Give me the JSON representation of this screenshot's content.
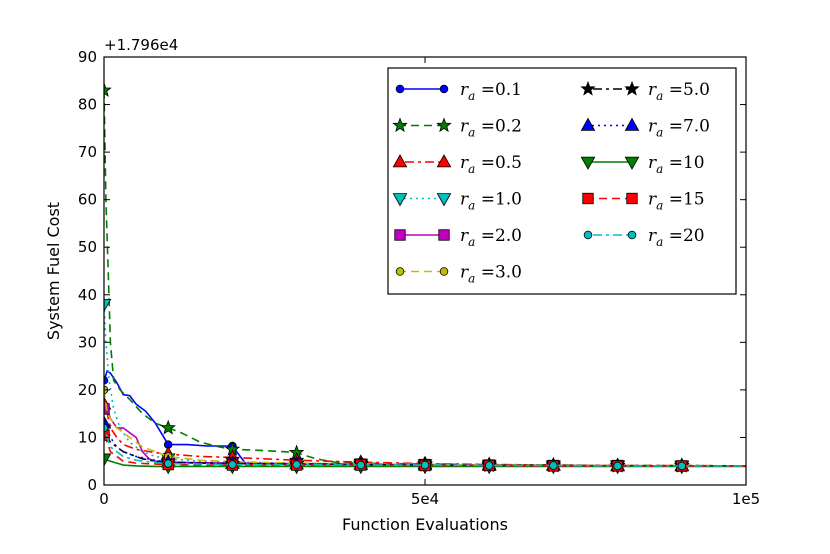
{
  "chart_data": {
    "type": "line",
    "title": "",
    "offset_text": "+1.796e4",
    "xlabel": "Function Evaluations",
    "ylabel": "System Fuel Cost",
    "xlim": [
      0,
      100000
    ],
    "ylim": [
      0,
      90
    ],
    "x_ticks": [
      0,
      50000,
      100000
    ],
    "x_tick_labels": [
      "0",
      "5e4",
      "1e5"
    ],
    "y_ticks": [
      0,
      10,
      20,
      30,
      40,
      50,
      60,
      70,
      80,
      90
    ],
    "y_tick_labels": [
      "0",
      "10",
      "20",
      "30",
      "40",
      "50",
      "60",
      "70",
      "80",
      "90"
    ],
    "grid": false,
    "legend_position": "top-right",
    "series": [
      {
        "name": "r_a = 0.1",
        "label_main": "r",
        "label_sub": "a",
        "label_val": " =0.1",
        "color": "#0000ff",
        "dash": "",
        "marker": "circle",
        "marker_x": [
          0,
          10000,
          20000,
          30000,
          40000,
          50000,
          60000,
          70000,
          80000,
          90000
        ],
        "x": [
          0,
          500,
          1000,
          2000,
          3000,
          4000,
          5000,
          6500,
          8000,
          10000,
          13000,
          16000,
          20000,
          22000,
          25000,
          30000,
          35000,
          40000,
          50000,
          60000,
          70000,
          80000,
          90000,
          100000
        ],
        "y": [
          22,
          24,
          23.5,
          21.5,
          19,
          18.8,
          17,
          15.5,
          13,
          8.5,
          8.5,
          8.2,
          8.2,
          4.6,
          4.5,
          4.4,
          4.4,
          4.3,
          4.2,
          4.1,
          4.1,
          4.0,
          4.0,
          4.0
        ]
      },
      {
        "name": "r_a = 0.2",
        "label_main": "r",
        "label_sub": "a",
        "label_val": " =0.2",
        "color": "#007f00",
        "dash": "8,5",
        "marker": "star",
        "marker_x": [
          0,
          10000,
          20000,
          30000,
          40000,
          50000,
          60000,
          70000,
          80000,
          90000
        ],
        "x": [
          0,
          300,
          700,
          1000,
          1500,
          2500,
          4000,
          6000,
          8000,
          10000,
          12000,
          15000,
          18000,
          20000,
          24000,
          28000,
          30000,
          33000,
          36000,
          40000,
          50000,
          60000,
          70000,
          80000,
          90000,
          100000
        ],
        "y": [
          83,
          60,
          43,
          30,
          22,
          20,
          18,
          15,
          13,
          12,
          11,
          9,
          8,
          7.5,
          7.3,
          7,
          6.8,
          5.5,
          4.8,
          4.6,
          4.4,
          4.3,
          4.2,
          4.1,
          4.1,
          4.0
        ]
      },
      {
        "name": "r_a = 0.5",
        "label_main": "r",
        "label_sub": "a",
        "label_val": " =0.5",
        "color": "#ff0000",
        "dash": "3,4,9,4",
        "marker": "triangle-up",
        "marker_x": [
          0,
          10000,
          20000,
          30000,
          40000,
          50000,
          60000,
          70000,
          80000,
          90000
        ],
        "x": [
          0,
          500,
          1000,
          2000,
          3000,
          5000,
          8000,
          10000,
          15000,
          20000,
          25000,
          30000,
          40000,
          50000,
          60000,
          70000,
          80000,
          90000,
          100000
        ],
        "y": [
          17,
          15,
          12,
          10,
          8.5,
          7.5,
          6.8,
          6.5,
          6.0,
          5.8,
          5.5,
          5.2,
          4.8,
          4.5,
          4.3,
          4.2,
          4.1,
          4.1,
          4.0
        ]
      },
      {
        "name": "r_a = 1.0",
        "label_main": "r",
        "label_sub": "a",
        "label_val": " =1.0",
        "color": "#00bfbf",
        "dash": "2,4",
        "marker": "triangle-down",
        "marker_x": [
          0,
          10000,
          20000,
          30000,
          40000,
          50000,
          60000,
          70000,
          80000,
          90000
        ],
        "x": [
          0,
          300,
          800,
          1500,
          2500,
          4000,
          6000,
          8000,
          10000,
          15000,
          20000,
          30000,
          40000,
          50000,
          60000,
          70000,
          80000,
          90000,
          100000
        ],
        "y": [
          38,
          30,
          22,
          16,
          12,
          9,
          7,
          6,
          5.5,
          5.0,
          4.8,
          4.6,
          4.4,
          4.3,
          4.2,
          4.1,
          4.1,
          4.0,
          4.0
        ]
      },
      {
        "name": "r_a = 2.0",
        "label_main": "r",
        "label_sub": "a",
        "label_val": " =2.0",
        "color": "#bf00bf",
        "dash": "",
        "marker": "square",
        "marker_x": [
          0,
          10000,
          20000,
          30000,
          40000,
          50000,
          60000,
          70000,
          80000,
          90000
        ],
        "x": [
          0,
          500,
          1000,
          2000,
          3000,
          4000,
          5000,
          6000,
          7000,
          8000,
          10000,
          15000,
          20000,
          30000,
          40000,
          50000,
          60000,
          70000,
          80000,
          90000,
          100000
        ],
        "y": [
          16,
          16,
          14,
          12,
          12,
          11,
          10,
          7,
          5.5,
          5,
          4.8,
          4.7,
          4.6,
          4.5,
          4.4,
          4.3,
          4.2,
          4.1,
          4.1,
          4.0,
          4.0
        ]
      },
      {
        "name": "r_a = 3.0",
        "label_main": "r",
        "label_sub": "a",
        "label_val": " =3.0",
        "color": "#bfbf00",
        "dash": "8,5",
        "marker": "circle",
        "marker_x": [
          0,
          10000,
          20000,
          30000,
          40000,
          50000,
          60000,
          70000,
          80000,
          90000
        ],
        "x": [
          0,
          500,
          1000,
          2000,
          3000,
          4000,
          5000,
          6000,
          8000,
          10000,
          15000,
          20000,
          30000,
          40000,
          50000,
          60000,
          70000,
          80000,
          90000,
          100000
        ],
        "y": [
          20,
          15,
          14,
          12,
          11,
          10,
          9,
          8,
          7,
          6,
          5.2,
          4.9,
          4.6,
          4.4,
          4.3,
          4.2,
          4.1,
          4.1,
          4.0,
          4.0
        ]
      },
      {
        "name": "r_a = 5.0",
        "label_main": "r",
        "label_sub": "a",
        "label_val": " =5.0",
        "color": "#000000",
        "dash": "3,4,9,4",
        "marker": "star",
        "marker_x": [
          0,
          10000,
          20000,
          30000,
          40000,
          50000,
          60000,
          70000,
          80000,
          90000
        ],
        "x": [
          0,
          500,
          1000,
          2000,
          3000,
          4000,
          6000,
          8000,
          10000,
          15000,
          20000,
          30000,
          40000,
          50000,
          60000,
          70000,
          80000,
          90000,
          100000
        ],
        "y": [
          12,
          10,
          9,
          8,
          7,
          6.5,
          5.5,
          5,
          4.8,
          4.6,
          4.5,
          4.4,
          4.3,
          4.2,
          4.1,
          4.1,
          4.0,
          4.0,
          4.0
        ]
      },
      {
        "name": "r_a = 7.0",
        "label_main": "r",
        "label_sub": "a",
        "label_val": " =7.0",
        "color": "#0000ff",
        "dash": "2,4",
        "marker": "triangle-up",
        "marker_x": [
          0,
          10000,
          20000,
          30000,
          40000,
          50000,
          60000,
          70000,
          80000,
          90000
        ],
        "x": [
          0,
          500,
          1000,
          2000,
          3000,
          5000,
          8000,
          10000,
          15000,
          20000,
          30000,
          40000,
          50000,
          60000,
          70000,
          80000,
          90000,
          100000
        ],
        "y": [
          13,
          12,
          10,
          8,
          7,
          6,
          5.2,
          4.8,
          4.6,
          4.5,
          4.4,
          4.3,
          4.2,
          4.1,
          4.1,
          4.0,
          4.0,
          4.0
        ]
      },
      {
        "name": "r_a = 10",
        "label_main": "r",
        "label_sub": "a",
        "label_val": " =10",
        "color": "#007f00",
        "dash": "",
        "marker": "triangle-down",
        "marker_x": [
          0,
          10000,
          20000,
          30000,
          40000,
          50000,
          60000,
          70000,
          80000,
          90000
        ],
        "x": [
          0,
          1000,
          2000,
          3000,
          5000,
          8000,
          10000,
          15000,
          20000,
          30000,
          40000,
          50000,
          60000,
          70000,
          80000,
          90000,
          100000
        ],
        "y": [
          5.5,
          5.0,
          4.6,
          4.2,
          4.0,
          3.9,
          3.9,
          3.9,
          3.9,
          3.9,
          3.9,
          3.9,
          3.9,
          3.9,
          3.9,
          3.9,
          3.9
        ]
      },
      {
        "name": "r_a = 15",
        "label_main": "r",
        "label_sub": "a",
        "label_val": " =15",
        "color": "#ff0000",
        "dash": "8,5",
        "marker": "square",
        "marker_x": [
          0,
          10000,
          20000,
          30000,
          40000,
          50000,
          60000,
          70000,
          80000,
          90000
        ],
        "x": [
          0,
          500,
          1000,
          2000,
          3000,
          5000,
          8000,
          10000,
          15000,
          20000,
          30000,
          40000,
          50000,
          60000,
          70000,
          80000,
          90000,
          100000
        ],
        "y": [
          10.5,
          9,
          7,
          6,
          5,
          4.6,
          4.4,
          4.3,
          4.2,
          4.2,
          4.2,
          4.2,
          4.1,
          4.1,
          4.0,
          4.0,
          4.0,
          4.0
        ]
      },
      {
        "name": "r_a = 20",
        "label_main": "r",
        "label_sub": "a",
        "label_val": " =20",
        "color": "#00bfbf",
        "dash": "3,4,9,4",
        "marker": "circle",
        "marker_x": [
          0,
          10000,
          20000,
          30000,
          40000,
          50000,
          60000,
          70000,
          80000,
          90000
        ],
        "x": [
          0,
          500,
          1000,
          2000,
          3000,
          5000,
          8000,
          10000,
          15000,
          20000,
          30000,
          40000,
          50000,
          60000,
          70000,
          80000,
          90000,
          100000
        ],
        "y": [
          12,
          10,
          8,
          7,
          6,
          5.2,
          4.7,
          4.5,
          4.4,
          4.3,
          4.3,
          4.2,
          4.2,
          4.1,
          4.1,
          4.0,
          4.0,
          4.0
        ]
      }
    ]
  }
}
